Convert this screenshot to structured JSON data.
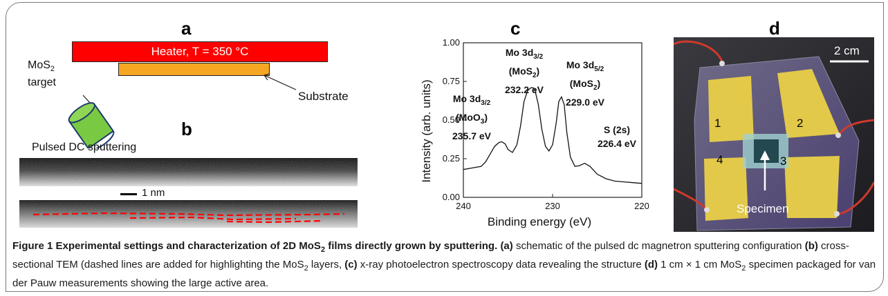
{
  "panel_a": {
    "label": "a",
    "heater_label": "Heater, T = 350 °C",
    "target_label_line1": "MoS",
    "target_label_sub": "2",
    "target_label_line2": "target",
    "substrate_label": "Substrate",
    "sputter_label": "Pulsed DC sputtering",
    "colors": {
      "heater": "#ff0000",
      "substrate": "#f5a623",
      "target": "#7ac943"
    }
  },
  "panel_b": {
    "label": "b",
    "scale_label": "1 nm"
  },
  "panel_c": {
    "label": "c"
  },
  "panel_d": {
    "label": "d",
    "scale_label": "2 cm",
    "contact_labels": [
      "1",
      "2",
      "3",
      "4"
    ],
    "specimen_label": "Specimen"
  },
  "chart_data": {
    "type": "line",
    "xlabel": "Binding energy (eV)",
    "ylabel": "Intensity (arb. units)",
    "xlim": [
      240,
      220
    ],
    "ylim": [
      0.0,
      1.0
    ],
    "x_ticks": [
      240,
      230,
      220
    ],
    "x_tick_labels": [
      "240",
      "230",
      "220"
    ],
    "y_ticks": [
      0.0,
      0.25,
      0.5,
      0.75,
      1.0
    ],
    "y_tick_labels": [
      "0.00",
      "0.25",
      "0.50",
      "0.75",
      "1.00"
    ],
    "series": [
      {
        "x": [
          240,
          239,
          238,
          237.5,
          237,
          236.5,
          236,
          235.7,
          235.3,
          235,
          234.5,
          234,
          233.6,
          233.2,
          232.8,
          232.4,
          232.2,
          232,
          231.6,
          231.2,
          230.8,
          230.4,
          230,
          229.6,
          229.3,
          229.0,
          228.7,
          228.4,
          228,
          227.5,
          227,
          226.4,
          225.8,
          225,
          224,
          223,
          222,
          221,
          220
        ],
        "y": [
          0.18,
          0.19,
          0.2,
          0.23,
          0.28,
          0.33,
          0.355,
          0.36,
          0.345,
          0.31,
          0.29,
          0.34,
          0.46,
          0.62,
          0.69,
          0.71,
          0.71,
          0.7,
          0.6,
          0.44,
          0.33,
          0.3,
          0.34,
          0.48,
          0.62,
          0.65,
          0.6,
          0.42,
          0.26,
          0.2,
          0.205,
          0.22,
          0.2,
          0.15,
          0.12,
          0.105,
          0.1,
          0.095,
          0.09
        ]
      }
    ],
    "annotations": [
      {
        "line1": "Mo 3d",
        "sub": "3/2",
        "line2": "(MoS",
        "sub2": "2",
        "close": ")",
        "line3": "232.2 eV"
      },
      {
        "line1": "Mo 3d",
        "sub": "5/2",
        "line2": "(MoS",
        "sub2": "2",
        "close": ")",
        "line3": "229.0 eV"
      },
      {
        "line1": "Mo 3d",
        "sub": "3/2",
        "line2": "(MoO",
        "sub2": "3",
        "close": ")",
        "line3": "235.7 eV"
      },
      {
        "line1": "S (2s)",
        "line3": "226.4 eV"
      }
    ]
  },
  "caption": {
    "title_bold": "Figure 1 Experimental settings and characterization of 2D MoS",
    "title_sub": "2",
    "title_end": " films directly grown by sputtering.",
    "a_label": "(a)",
    "a_text": " schematic of the pulsed dc magnetron sputtering configuration ",
    "b_label": "(b)",
    "b_text1": " cross-sectional TEM (dashed lines are added for highlighting the MoS",
    "b_sub": "2",
    "b_text2": " layers, ",
    "c_label": "(c)",
    "c_text": " x-ray photoelectron spectroscopy data revealing the structure ",
    "d_label": "(d)",
    "d_text1": " 1 cm × 1 cm MoS",
    "d_sub": "2",
    "d_text2": " specimen packaged for van der Pauw measurements showing the large active area."
  }
}
